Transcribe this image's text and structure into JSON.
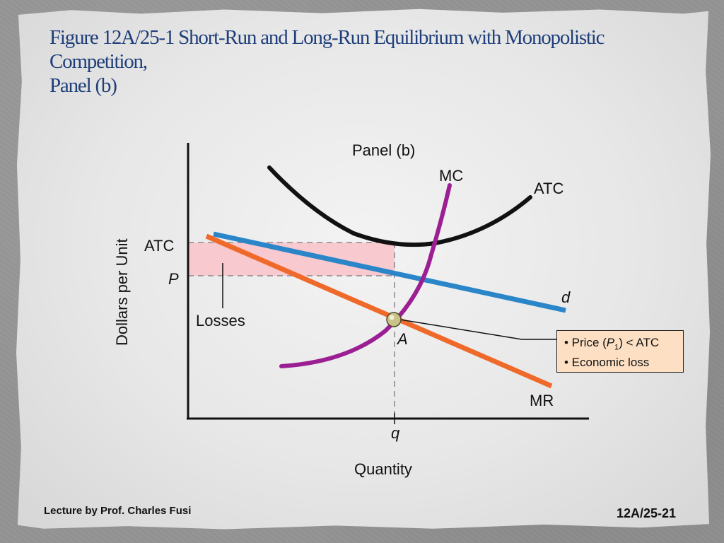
{
  "slide": {
    "title_line1": "Figure 12A/25-1  Short-Run and Long-Run Equilibrium with Monopolistic",
    "title_line2": "Competition,",
    "title_line3": "Panel (b)",
    "footer_left": "Lecture by Prof. Charles Fusi",
    "footer_right": "12A/25-21"
  },
  "diagram": {
    "panel_label": "Panel (b)",
    "y_axis_label": "Dollars per Unit",
    "x_axis_label": "Quantity",
    "y_tick_atc": "ATC",
    "y_tick_p": "P",
    "x_tick_q": "q",
    "curve_mc": "MC",
    "curve_atc": "ATC",
    "curve_d": "d",
    "curve_mr": "MR",
    "point_a": "A",
    "losses_label": "Losses",
    "callout_line1_prefix": "• Price (",
    "callout_line1_var": "P",
    "callout_line1_sub": "1",
    "callout_line1_suffix": ") < ATC",
    "callout_line2": "• Economic loss",
    "colors": {
      "title": "#1f3f7a",
      "mc": "#9b1f93",
      "atc": "#111111",
      "d": "#2a86c8",
      "mr": "#ef6a2a",
      "losses_fill": "#f8c9cf",
      "callout_bg": "#fde0c4"
    }
  }
}
